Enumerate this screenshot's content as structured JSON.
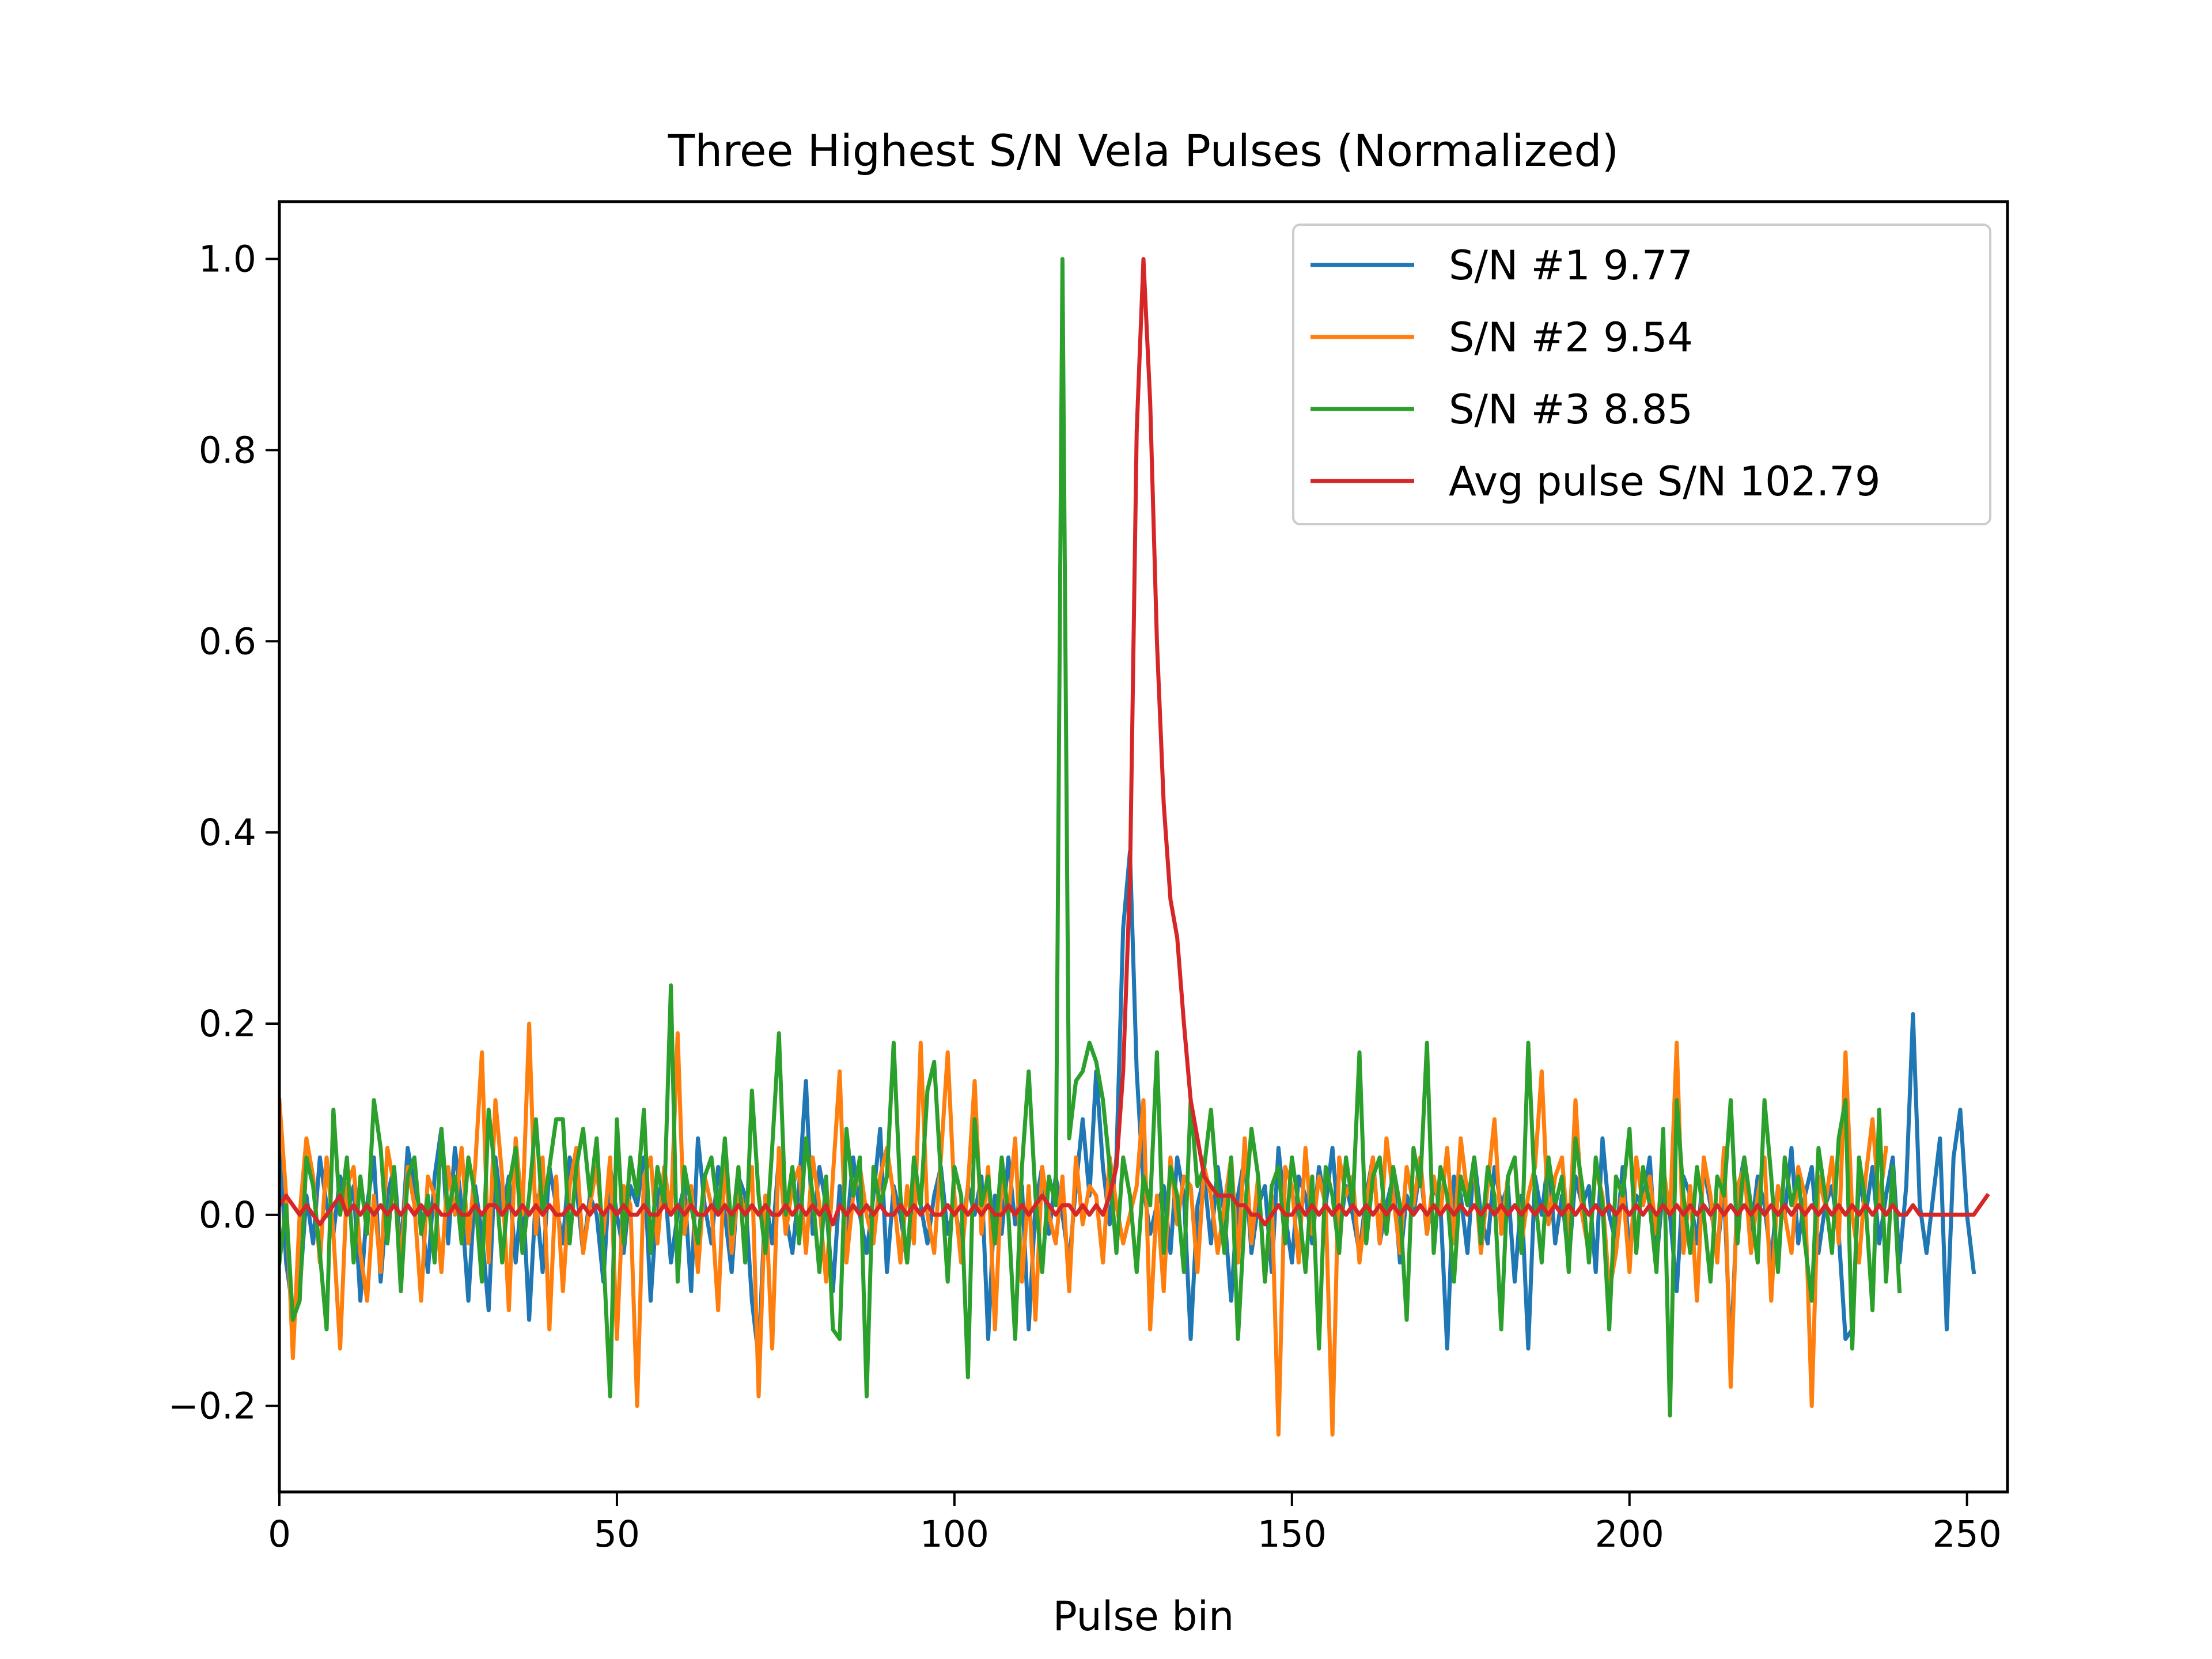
{
  "chart_data": {
    "type": "line",
    "title": "Three Highest S/N Vela Pulses (Normalized)",
    "xlabel": "Pulse bin",
    "ylabel": "",
    "xlim": [
      0,
      256
    ],
    "ylim": [
      -0.29,
      1.06
    ],
    "xticks": [
      0,
      50,
      100,
      150,
      200,
      250
    ],
    "xtick_labels": [
      "0",
      "50",
      "100",
      "150",
      "200",
      "250"
    ],
    "yticks": [
      -0.2,
      0.0,
      0.2,
      0.4,
      0.6,
      0.8,
      1.0
    ],
    "ytick_labels": [
      "−0.2",
      "0.0",
      "0.2",
      "0.4",
      "0.6",
      "0.8",
      "1.0"
    ],
    "grid": false,
    "legend_position": "top-right",
    "series": [
      {
        "name": "S/N #1 9.77",
        "color": "#1f77b4",
        "x_start": 0,
        "x_step": 1,
        "values": [
          0.09,
          -0.05,
          -0.1,
          -0.08,
          0.02,
          -0.03,
          0.06,
          0.01,
          -0.02,
          0.04,
          0.0,
          0.03,
          -0.09,
          0.01,
          0.06,
          -0.07,
          0.02,
          0.05,
          -0.04,
          0.07,
          0.03,
          0.0,
          -0.06,
          0.04,
          0.09,
          -0.03,
          0.07,
          0.01,
          -0.09,
          0.03,
          -0.02,
          -0.1,
          0.06,
          0.0,
          0.04,
          -0.05,
          0.03,
          -0.11,
          0.02,
          -0.06,
          0.05,
          0.01,
          -0.03,
          0.06,
          0.03,
          -0.04,
          0.02,
          0.0,
          -0.07,
          0.05,
          0.0,
          -0.04,
          0.03,
          0.01,
          0.06,
          -0.09,
          0.02,
          0.04,
          -0.05,
          0.0,
          0.03,
          -0.08,
          0.08,
          0.01,
          -0.03,
          0.05,
          0.0,
          -0.06,
          0.04,
          0.02,
          -0.09,
          -0.15,
          0.02,
          -0.03,
          0.06,
          0.0,
          -0.04,
          0.03,
          0.14,
          -0.02,
          0.05,
          0.01,
          -0.08,
          0.03,
          -0.02,
          0.06,
          0.0,
          -0.04,
          0.02,
          0.09,
          -0.06,
          0.03,
          0.0,
          -0.05,
          0.04,
          0.01,
          -0.03,
          0.02,
          0.05,
          -0.02,
          0.01,
          -0.03,
          0.03,
          0.0,
          0.04,
          -0.13,
          0.02,
          -0.02,
          0.06,
          -0.01,
          0.03,
          -0.12,
          0.01,
          0.05,
          -0.02,
          0.04,
          0.0,
          -0.05,
          0.03,
          0.1,
          0.02,
          0.15,
          0.05,
          -0.01,
          0.06,
          0.3,
          0.38,
          0.15,
          0.03,
          -0.02,
          0.01,
          0.03,
          -0.04,
          0.06,
          0.02,
          -0.13,
          0.01,
          0.04,
          -0.03,
          0.05,
          0.0,
          -0.09,
          0.02,
          0.06,
          -0.04,
          0.01,
          0.03,
          -0.06,
          0.07,
          0.0,
          -0.05,
          0.04,
          0.02,
          -0.03,
          0.05,
          0.01,
          0.07,
          -0.02,
          0.03,
          0.0,
          -0.04,
          0.02,
          0.06,
          -0.03,
          0.01,
          0.04,
          -0.05,
          0.02,
          0.0,
          0.05,
          -0.02,
          0.03,
          0.01,
          -0.14,
          0.04,
          0.02,
          -0.04,
          0.06,
          0.0,
          -0.03,
          0.05,
          0.01,
          0.03,
          -0.07,
          0.02,
          -0.14,
          0.04,
          0.0,
          0.06,
          -0.03,
          0.02,
          -0.05,
          0.04,
          0.01,
          0.03,
          -0.06,
          0.08,
          0.0,
          -0.03,
          0.05,
          -0.04,
          0.02,
          0.01,
          0.06,
          -0.05,
          0.03,
          0.0,
          -0.08,
          0.04,
          0.02,
          -0.03,
          0.05,
          0.01,
          -0.04,
          0.03,
          -0.15,
          0.02,
          0.06,
          -0.02,
          0.04,
          0.01,
          -0.05,
          0.03,
          0.0,
          0.07,
          -0.03,
          0.02,
          0.05,
          -0.04,
          0.01,
          0.03,
          -0.02,
          -0.13,
          -0.12,
          0.04,
          0.0,
          0.05,
          -0.03,
          0.02,
          0.06,
          -0.05,
          0.03,
          0.21,
          0.01,
          -0.04,
          0.02,
          0.08,
          -0.12,
          0.06,
          0.11,
          0.0,
          -0.06
        ],
        "name_shown": true
      },
      {
        "name": "S/N #2 9.54",
        "color": "#ff7f0e",
        "x_start": 0,
        "x_step": 1,
        "values": [
          0.12,
          0.02,
          -0.15,
          0.0,
          0.08,
          0.04,
          -0.05,
          0.06,
          -0.02,
          -0.14,
          0.03,
          0.05,
          -0.04,
          -0.09,
          0.02,
          -0.06,
          0.07,
          0.03,
          -0.05,
          0.05,
          0.01,
          -0.09,
          0.04,
          0.02,
          -0.06,
          0.05,
          0.0,
          0.07,
          -0.03,
          0.05,
          0.17,
          -0.05,
          0.12,
          0.04,
          -0.1,
          0.08,
          0.0,
          0.2,
          -0.02,
          0.06,
          -0.12,
          0.04,
          -0.08,
          0.03,
          0.07,
          -0.04,
          0.01,
          0.05,
          -0.02,
          0.06,
          -0.13,
          0.03,
          0.01,
          -0.2,
          0.04,
          0.06,
          -0.03,
          0.05,
          0.0,
          0.19,
          -0.02,
          0.03,
          -0.06,
          0.04,
          0.01,
          -0.1,
          0.06,
          -0.04,
          0.03,
          0.0,
          0.05,
          -0.19,
          0.02,
          -0.14,
          0.07,
          -0.02,
          0.03,
          0.05,
          -0.04,
          0.06,
          0.01,
          -0.07,
          0.04,
          0.15,
          -0.05,
          0.02,
          0.05,
          0.0,
          -0.03,
          0.04,
          0.07,
          0.02,
          -0.05,
          0.03,
          -0.03,
          0.18,
          0.0,
          -0.04,
          0.06,
          0.17,
          0.02,
          -0.05,
          0.03,
          0.14,
          -0.02,
          0.05,
          -0.12,
          0.04,
          0.0,
          0.08,
          -0.07,
          0.03,
          -0.11,
          0.05,
          0.0,
          -0.03,
          0.04,
          -0.08,
          0.06,
          -0.01,
          0.03,
          0.02,
          -0.05,
          0.06,
          0.01,
          -0.03,
          0.0,
          0.03,
          0.12,
          -0.12,
          0.02,
          -0.08,
          0.06,
          -0.01,
          0.04,
          0.03,
          -0.06,
          0.05,
          0.02,
          -0.04,
          0.01,
          0.06,
          -0.05,
          0.08,
          -0.03,
          0.04,
          -0.07,
          0.02,
          -0.23,
          0.05,
          0.03,
          -0.05,
          0.07,
          -0.02,
          0.04,
          0.01,
          -0.23,
          0.06,
          0.02,
          0.04,
          -0.05,
          0.01,
          0.06,
          -0.03,
          0.08,
          0.02,
          -0.04,
          0.05,
          0.01,
          0.06,
          -0.02,
          0.04,
          0.0,
          0.07,
          -0.03,
          0.08,
          0.02,
          0.05,
          -0.04,
          0.03,
          0.1,
          -0.02,
          0.04,
          0.06,
          -0.03,
          0.02,
          0.05,
          0.15,
          -0.01,
          0.04,
          0.06,
          -0.03,
          0.12,
          0.0,
          -0.04,
          0.05,
          0.02,
          -0.08,
          -0.04,
          0.03,
          -0.06,
          0.06,
          0.01,
          0.04,
          -0.02,
          0.05,
          0.0,
          0.18,
          -0.04,
          0.03,
          -0.09,
          0.06,
          0.02,
          -0.05,
          0.07,
          -0.18,
          0.03,
          0.05,
          -0.04,
          0.02,
          0.06,
          -0.09,
          0.03,
          0.0,
          -0.04,
          0.05,
          0.02,
          -0.2,
          0.04,
          0.01,
          0.06,
          -0.03,
          0.17,
          0.0,
          -0.05,
          0.04,
          0.1,
          0.01,
          0.07
        ],
        "name_shown": true
      },
      {
        "name": "S/N #3 8.85",
        "color": "#2ca02c",
        "x_start": 0,
        "x_step": 1,
        "values": [
          -0.05,
          0.01,
          -0.11,
          -0.09,
          0.06,
          0.03,
          -0.04,
          -0.12,
          0.11,
          0.0,
          0.06,
          -0.05,
          0.04,
          -0.02,
          0.12,
          0.07,
          -0.03,
          0.05,
          -0.08,
          0.04,
          0.06,
          -0.02,
          0.02,
          -0.05,
          0.09,
          0.0,
          0.04,
          -0.03,
          0.06,
          0.02,
          -0.07,
          0.11,
          0.04,
          -0.05,
          0.03,
          0.07,
          -0.04,
          0.02,
          0.1,
          0.0,
          0.05,
          0.1,
          0.1,
          -0.03,
          0.05,
          0.09,
          0.02,
          0.08,
          -0.04,
          -0.19,
          0.1,
          -0.03,
          0.06,
          0.02,
          0.11,
          -0.04,
          0.05,
          0.01,
          0.24,
          -0.07,
          0.05,
          0.01,
          -0.03,
          0.04,
          0.06,
          0.0,
          0.08,
          -0.02,
          0.05,
          -0.05,
          0.13,
          0.02,
          -0.04,
          0.07,
          0.19,
          0.0,
          0.05,
          -0.03,
          0.08,
          0.02,
          -0.06,
          0.04,
          -0.12,
          -0.13,
          0.09,
          0.02,
          0.06,
          -0.19,
          0.05,
          0.01,
          0.04,
          0.18,
          0.02,
          -0.05,
          0.06,
          0.01,
          0.13,
          0.16,
          0.04,
          -0.07,
          0.05,
          0.02,
          -0.17,
          0.1,
          0.01,
          0.04,
          -0.03,
          0.06,
          0.0,
          -0.13,
          0.05,
          0.15,
          0.02,
          -0.06,
          0.04,
          0.01,
          1.0,
          0.08,
          0.14,
          0.15,
          0.18,
          0.16,
          0.12,
          0.05,
          -0.04,
          0.06,
          0.02,
          -0.06,
          0.04,
          0.01,
          0.17,
          -0.04,
          0.05,
          0.02,
          -0.06,
          0.12,
          0.03,
          0.05,
          0.11,
          0.02,
          -0.04,
          0.06,
          -0.13,
          0.0,
          0.09,
          0.04,
          -0.07,
          0.03,
          0.05,
          -0.03,
          0.06,
          0.01,
          -0.06,
          0.04,
          -0.14,
          0.05,
          0.02,
          -0.04,
          0.06,
          0.01,
          0.17,
          -0.03,
          0.04,
          0.06,
          -0.02,
          0.05,
          0.01,
          -0.11,
          0.07,
          0.03,
          0.18,
          -0.04,
          0.05,
          0.02,
          -0.07,
          0.04,
          0.01,
          0.06,
          -0.03,
          0.05,
          0.02,
          -0.12,
          0.04,
          0.06,
          -0.04,
          0.18,
          0.02,
          -0.05,
          0.06,
          0.01,
          0.04,
          -0.06,
          0.08,
          0.03,
          -0.05,
          0.06,
          0.01,
          -0.12,
          0.04,
          0.02,
          0.09,
          -0.04,
          0.05,
          0.01,
          -0.06,
          0.09,
          -0.21,
          0.12,
          0.02,
          -0.04,
          0.05,
          0.0,
          -0.07,
          0.04,
          0.02,
          0.12,
          -0.03,
          0.06,
          0.01,
          -0.05,
          0.12,
          0.04,
          -0.06,
          0.06,
          0.01,
          0.04,
          -0.03,
          -0.09,
          0.07,
          0.02,
          -0.04,
          0.08,
          0.12,
          -0.14,
          0.06,
          0.01,
          -0.1,
          0.11,
          -0.07,
          0.05,
          -0.08
        ],
        "name_shown": true
      },
      {
        "name": "Avg pulse S/N 102.79",
        "color": "#d62728",
        "x_start": 0,
        "x_step": 1,
        "values": [
          0.01,
          0.02,
          0.01,
          0.0,
          0.01,
          0.0,
          -0.01,
          0.0,
          0.01,
          0.02,
          0.0,
          0.01,
          0.0,
          0.01,
          0.0,
          0.01,
          0.0,
          0.01,
          0.0,
          0.01,
          0.0,
          0.01,
          0.0,
          0.01,
          0.0,
          0.0,
          0.01,
          0.0,
          0.0,
          0.01,
          0.0,
          0.01,
          0.01,
          0.0,
          0.01,
          0.0,
          0.01,
          0.0,
          0.01,
          0.0,
          0.01,
          0.0,
          0.0,
          0.01,
          0.0,
          0.01,
          0.0,
          0.01,
          0.0,
          0.01,
          0.0,
          0.01,
          0.0,
          0.0,
          0.01,
          0.0,
          0.0,
          0.01,
          0.0,
          0.01,
          0.0,
          0.01,
          0.0,
          0.0,
          0.01,
          0.0,
          0.01,
          0.0,
          0.01,
          0.0,
          0.01,
          0.0,
          0.01,
          0.0,
          0.0,
          0.01,
          0.0,
          0.01,
          0.0,
          0.01,
          0.0,
          0.01,
          -0.01,
          0.01,
          0.0,
          0.01,
          0.0,
          0.01,
          0.0,
          0.01,
          0.0,
          0.0,
          0.01,
          0.0,
          0.01,
          0.0,
          0.01,
          0.0,
          0.0,
          0.01,
          0.0,
          0.01,
          0.0,
          0.01,
          0.0,
          0.01,
          0.0,
          0.0,
          0.01,
          0.0,
          0.01,
          0.0,
          0.01,
          0.02,
          0.01,
          0.0,
          0.01,
          0.01,
          0.0,
          0.01,
          0.0,
          0.01,
          0.0,
          0.02,
          0.05,
          0.15,
          0.35,
          0.82,
          1.0,
          0.85,
          0.6,
          0.43,
          0.33,
          0.29,
          0.2,
          0.12,
          0.08,
          0.04,
          0.03,
          0.02,
          0.02,
          0.02,
          0.01,
          0.01,
          0.0,
          0.0,
          -0.01,
          0.0,
          0.01,
          0.0,
          0.0,
          0.01,
          0.0,
          0.01,
          0.0,
          0.01,
          0.0,
          0.01,
          0.0,
          0.01,
          0.0,
          0.01,
          0.0,
          0.01,
          0.0,
          0.01,
          0.0,
          0.01,
          0.0,
          0.01,
          0.0,
          0.01,
          0.0,
          0.01,
          0.0,
          0.01,
          0.0,
          0.01,
          0.0,
          0.01,
          0.0,
          0.01,
          0.0,
          0.01,
          0.0,
          0.01,
          0.0,
          0.01,
          0.0,
          0.01,
          0.0,
          0.01,
          0.0,
          0.01,
          0.0,
          0.01,
          0.0,
          0.01,
          0.0,
          0.01,
          0.0,
          0.01,
          0.0,
          0.01,
          0.0,
          0.01,
          0.0,
          0.01,
          0.0,
          0.01,
          0.0,
          0.01,
          0.0,
          0.01,
          0.0,
          0.01,
          0.0,
          0.01,
          0.0,
          0.01,
          0.0,
          0.01,
          0.0,
          0.01,
          0.0,
          0.01,
          0.0,
          0.01,
          0.0,
          0.01,
          0.0,
          0.01,
          0.0,
          0.01,
          0.0,
          0.01,
          0.0,
          0.01,
          0.0,
          0.01,
          0.0,
          0.0,
          0.01,
          0.0,
          0.0,
          0.0,
          0.0,
          0.0,
          0.0,
          0.0,
          0.0,
          0.0,
          0.01,
          0.02
        ],
        "name_shown": true
      }
    ]
  }
}
